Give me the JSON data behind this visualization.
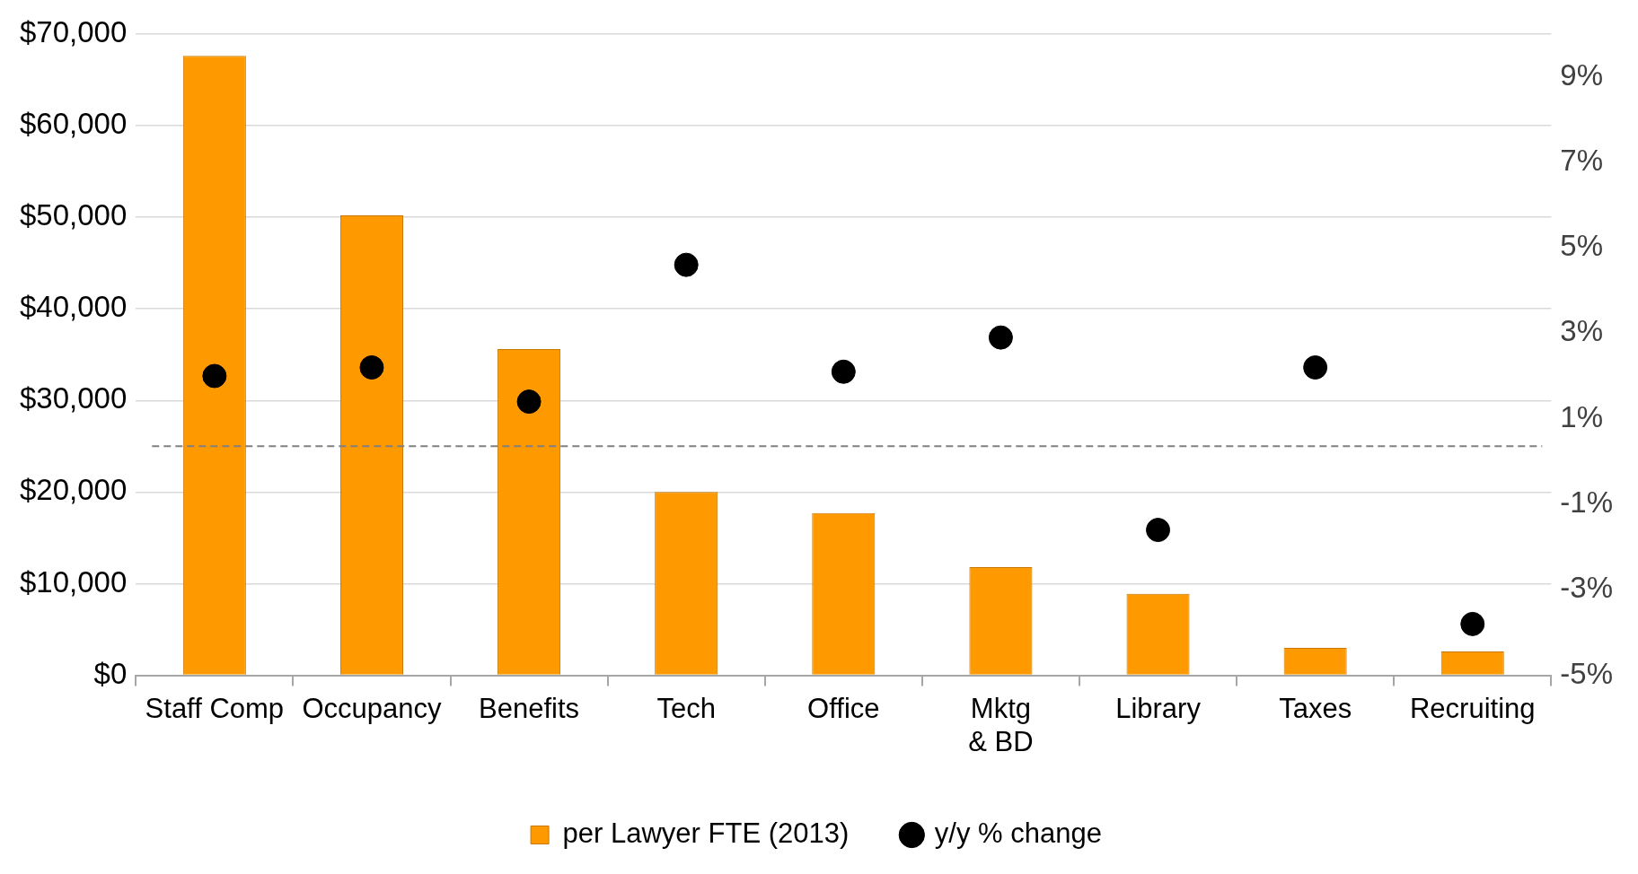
{
  "chart_data": {
    "type": "bar",
    "categories": [
      "Staff Comp",
      "Occupancy",
      "Benefits",
      "Tech",
      "Office",
      "Mktg\n& BD",
      "Library",
      "Taxes",
      "Recruiting"
    ],
    "series": [
      {
        "name": "per Lawyer FTE (2013)",
        "color": "#ff9900",
        "values": [
          67600,
          50200,
          35600,
          20000,
          17700,
          11800,
          8900,
          3000,
          2600
        ]
      },
      {
        "name": "y/y % change",
        "type": "scatter",
        "axis": "y2",
        "color": "#000000",
        "marker": "circle",
        "values": [
          2.0,
          2.2,
          1.4,
          4.6,
          2.1,
          2.9,
          -1.6,
          2.2,
          -3.8
        ]
      }
    ],
    "ylim": [
      0,
      70000
    ],
    "yticks": [
      {
        "value": 0,
        "label": "$0"
      },
      {
        "value": 10000,
        "label": "$10,000"
      },
      {
        "value": 20000,
        "label": "$20,000"
      },
      {
        "value": 30000,
        "label": "$30,000"
      },
      {
        "value": 40000,
        "label": "$40,000"
      },
      {
        "value": 50000,
        "label": "$50,000"
      },
      {
        "value": 60000,
        "label": "$60,000"
      },
      {
        "value": 70000,
        "label": "$70,000"
      }
    ],
    "y2lim": [
      -5,
      10
    ],
    "y2ticks": [
      {
        "value": -5,
        "label": "-5%"
      },
      {
        "value": -3,
        "label": "-3%"
      },
      {
        "value": -1,
        "label": "-1%"
      },
      {
        "value": 1,
        "label": "1%"
      },
      {
        "value": 3,
        "label": "3%"
      },
      {
        "value": 5,
        "label": "5%"
      },
      {
        "value": 7,
        "label": "7%"
      },
      {
        "value": 9,
        "label": "9%"
      }
    ],
    "ref_lines": [
      {
        "axis": "y",
        "value": 25000,
        "color": "#808080",
        "line_style": "dashed"
      }
    ],
    "grid": "y",
    "legend": "bottom"
  }
}
